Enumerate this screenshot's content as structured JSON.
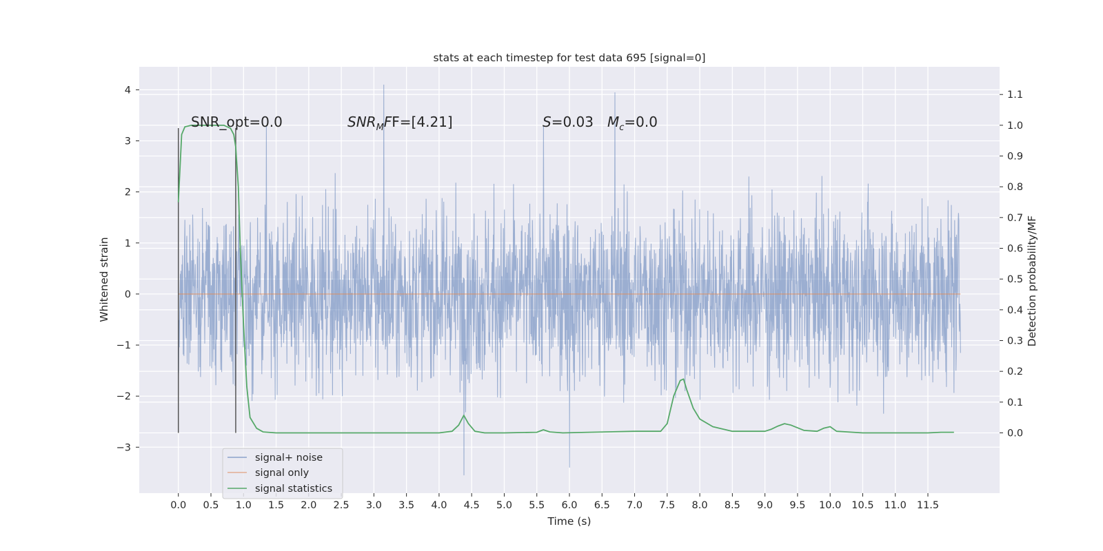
{
  "chart_data": {
    "type": "line",
    "title": "stats at each timestep for test data 695 [signal=0]",
    "xlabel": "Time (s)",
    "ylabel": "Whitened strain",
    "y2label": "Detection probability/MF",
    "xlim": [
      -0.6,
      12.6
    ],
    "ylim": [
      -3.9,
      4.45
    ],
    "y2lim": [
      -0.196,
      1.19
    ],
    "xticks": [
      "0.0",
      "0.5",
      "1.0",
      "1.5",
      "2.0",
      "2.5",
      "3.0",
      "3.5",
      "4.0",
      "4.5",
      "5.0",
      "5.5",
      "6.0",
      "6.5",
      "7.0",
      "7.5",
      "8.0",
      "8.5",
      "9.0",
      "9.5",
      "10.0",
      "10.5",
      "11.0",
      "11.5"
    ],
    "yticks": [
      "4",
      "3",
      "2",
      "1",
      "0",
      "−1",
      "−2",
      "−3"
    ],
    "y2ticks": [
      "1.1",
      "1.0",
      "0.9",
      "0.8",
      "0.7",
      "0.6",
      "0.5",
      "0.4",
      "0.3",
      "0.2",
      "0.1",
      "0.0"
    ],
    "grid": true,
    "legend_position": "lower-left",
    "annotations": {
      "snr_opt": "SNR_opt=0.0",
      "snr_mf_prefix": "SNR",
      "snr_mf_sub": "M",
      "snr_mf_suffix": "F=[4.21]",
      "s_prefix": "S",
      "s_value": "=0.03",
      "mc_prefix": "M",
      "mc_sub": "c",
      "mc_value": "=0.0"
    },
    "vertical_markers_x": [
      0.0,
      0.88
    ],
    "series": [
      {
        "name": "signal+ noise",
        "color": "#4c72b0",
        "axis": "left",
        "description_values": {
          "duration_s": 12.0,
          "typical_range": [
            -1.6,
            1.5
          ],
          "extreme_max": 4.1,
          "extreme_min": -3.55,
          "peaks": [
            [
              3.15,
              4.1
            ],
            [
              6.7,
              3.95
            ],
            [
              1.35,
              3.3
            ],
            [
              5.6,
              3.3
            ],
            [
              4.38,
              -3.55
            ],
            [
              6.0,
              -3.4
            ],
            [
              2.6,
              0.85
            ]
          ]
        }
      },
      {
        "name": "signal only",
        "color": "#dd8452",
        "axis": "left",
        "x": [
          0.0,
          12.0
        ],
        "y": [
          0.0,
          0.0
        ]
      },
      {
        "name": "signal statistics",
        "color": "#55a868",
        "axis": "right",
        "x": [
          0.0,
          0.05,
          0.1,
          0.2,
          0.3,
          0.5,
          0.7,
          0.8,
          0.85,
          0.88,
          0.92,
          0.95,
          1.0,
          1.05,
          1.1,
          1.2,
          1.3,
          1.5,
          2.0,
          3.0,
          4.0,
          4.2,
          4.3,
          4.38,
          4.45,
          4.55,
          4.7,
          5.0,
          5.5,
          5.6,
          5.7,
          5.9,
          6.3,
          7.0,
          7.4,
          7.5,
          7.6,
          7.7,
          7.75,
          7.8,
          7.9,
          8.0,
          8.2,
          8.5,
          9.0,
          9.1,
          9.2,
          9.3,
          9.4,
          9.6,
          9.8,
          9.9,
          10.0,
          10.1,
          10.5,
          11.0,
          11.5,
          11.7,
          11.9
        ],
        "y": [
          0.75,
          0.97,
          0.995,
          1.0,
          1.0,
          1.0,
          1.0,
          0.99,
          0.97,
          0.93,
          0.8,
          0.6,
          0.35,
          0.15,
          0.05,
          0.015,
          0.003,
          0.0,
          0.0,
          0.0,
          0.0,
          0.005,
          0.025,
          0.057,
          0.03,
          0.005,
          0.0,
          0.0,
          0.002,
          0.01,
          0.003,
          0.0,
          0.002,
          0.005,
          0.005,
          0.03,
          0.12,
          0.17,
          0.175,
          0.14,
          0.08,
          0.045,
          0.02,
          0.005,
          0.005,
          0.012,
          0.022,
          0.03,
          0.025,
          0.008,
          0.005,
          0.015,
          0.02,
          0.005,
          0.0,
          0.0,
          0.0,
          0.002,
          0.002
        ]
      }
    ]
  }
}
